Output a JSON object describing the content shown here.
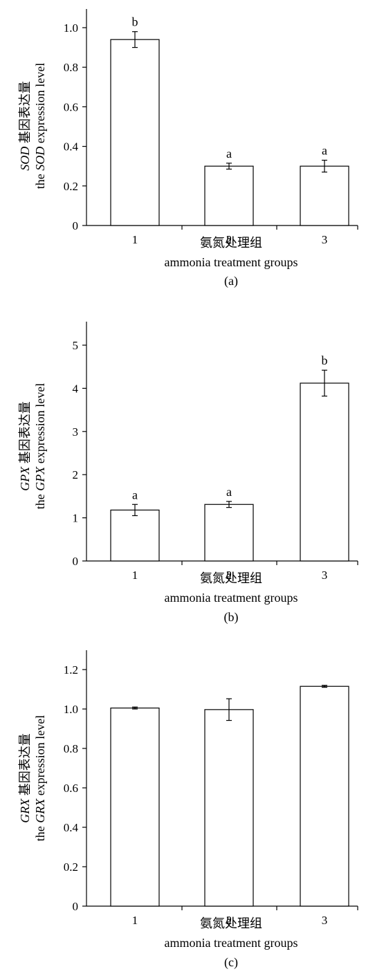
{
  "chart_data": [
    {
      "type": "bar",
      "panel_label": "(a)",
      "categories": [
        "1",
        "2",
        "3"
      ],
      "values": [
        0.94,
        0.3,
        0.3
      ],
      "errors": [
        0.04,
        0.015,
        0.03
      ],
      "significance": [
        "b",
        "a",
        "a"
      ],
      "ylim": [
        0,
        1.0
      ],
      "yticks": [
        "0",
        "0.2",
        "0.4",
        "0.6",
        "0.8",
        "1.0"
      ],
      "ylabel_line1": {
        "gene": "SOD",
        "text": " 基因表达量"
      },
      "ylabel_line2": {
        "prefix": "the ",
        "gene": "SOD",
        "suffix": " expression level"
      },
      "xlabel_line1": "氨氮处理组",
      "xlabel_line2": "ammonia treatment groups"
    },
    {
      "type": "bar",
      "panel_label": "(b)",
      "categories": [
        "1",
        "2",
        "3"
      ],
      "values": [
        1.18,
        1.31,
        4.12
      ],
      "errors": [
        0.13,
        0.07,
        0.3
      ],
      "significance": [
        "a",
        "a",
        "b"
      ],
      "ylim": [
        0,
        5
      ],
      "yticks": [
        "0",
        "1",
        "2",
        "3",
        "4",
        "5"
      ],
      "ylabel_line1": {
        "gene": "GPX",
        "text": " 基因表达量"
      },
      "ylabel_line2": {
        "prefix": "the ",
        "gene": "GPX",
        "suffix": " expression level"
      },
      "xlabel_line1": "氨氮处理组",
      "xlabel_line2": "ammonia treatment groups"
    },
    {
      "type": "bar",
      "panel_label": "(c)",
      "categories": [
        "1",
        "2",
        "3"
      ],
      "values": [
        1.005,
        0.997,
        1.115
      ],
      "errors": [
        0.005,
        0.055,
        0.005
      ],
      "significance": [
        "",
        "",
        ""
      ],
      "ylim": [
        0,
        1.2
      ],
      "yticks": [
        "0",
        "0.2",
        "0.4",
        "0.6",
        "0.8",
        "1.0",
        "1.2"
      ],
      "ylabel_line1": {
        "gene": "GRX",
        "text": " 基因表达量"
      },
      "ylabel_line2": {
        "prefix": "the ",
        "gene": "GRX",
        "suffix": " expression level"
      },
      "xlabel_line1": "氨氮处理组",
      "xlabel_line2": "ammonia treatment groups"
    }
  ]
}
